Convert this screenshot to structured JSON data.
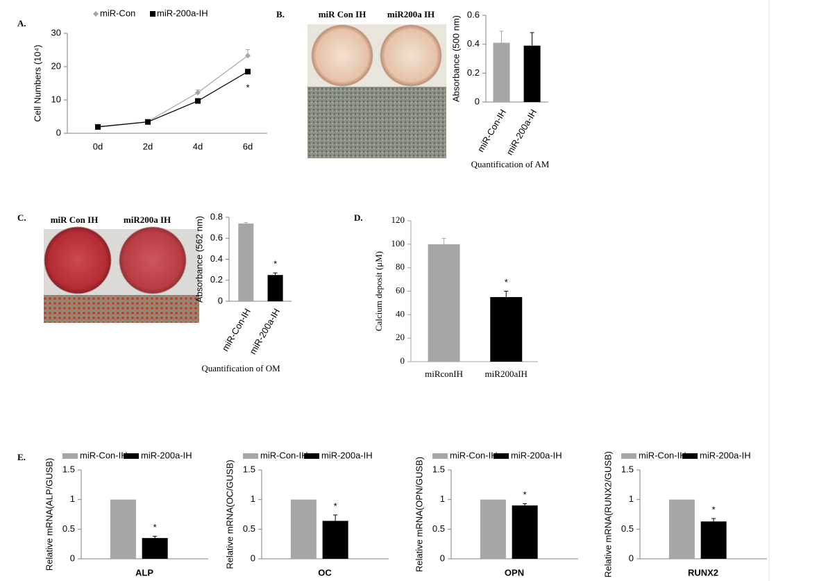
{
  "chart_data": [
    {
      "type": "line",
      "panel": "A.",
      "ylabel": "Cell Numbers (10⁴)",
      "categories": [
        "0d",
        "2d",
        "4d",
        "6d"
      ],
      "ylim": [
        0,
        30
      ],
      "yticks": [
        0,
        10,
        20,
        30
      ],
      "series": [
        {
          "name": "miR-Con",
          "color": "#a6a6a6",
          "marker": "diamond",
          "values": [
            2,
            3.5,
            12.2,
            23.3
          ],
          "errors": [
            0.2,
            0.3,
            0.8,
            1.8
          ]
        },
        {
          "name": "miR-200a-IH",
          "color": "#000000",
          "marker": "square",
          "values": [
            1.9,
            3.4,
            9.7,
            18.5
          ],
          "errors": [
            0.2,
            0.3,
            0.5,
            0.6
          ]
        }
      ],
      "annotation": "*"
    },
    {
      "type": "bar",
      "panel": "B.",
      "photo_labels": [
        "miR Con IH",
        "miR200a IH"
      ],
      "ylabel": "Absorbance (500 nm)",
      "xlabel": "Quantification of AM",
      "categories": [
        "miR-Con-IH",
        "miR-200a-IH"
      ],
      "values": [
        0.41,
        0.39
      ],
      "errors": [
        0.08,
        0.09
      ],
      "colors": [
        "#a6a6a6",
        "#000000"
      ],
      "ylim": [
        0,
        0.6
      ],
      "yticks": [
        0,
        0.2,
        0.4,
        0.6
      ]
    },
    {
      "type": "bar",
      "panel": "C.",
      "photo_labels": [
        "miR Con IH",
        "miR200a IH"
      ],
      "ylabel": "Absorbance (562 nm)",
      "xlabel": "Quantification of OM",
      "categories": [
        "miR-Con-IH",
        "miR-200a-IH"
      ],
      "values": [
        0.74,
        0.25
      ],
      "errors": [
        0.01,
        0.02
      ],
      "colors": [
        "#a6a6a6",
        "#000000"
      ],
      "ylim": [
        0,
        0.8
      ],
      "yticks": [
        0,
        0.2,
        0.4,
        0.6,
        0.8
      ],
      "annotation": "*"
    },
    {
      "type": "bar",
      "panel": "D.",
      "ylabel": "Calcium deposit (μM)",
      "categories": [
        "miRconIH",
        "miR200aIH"
      ],
      "values": [
        100,
        55
      ],
      "errors": [
        5,
        5
      ],
      "colors": [
        "#a6a6a6",
        "#000000"
      ],
      "ylim": [
        0,
        120
      ],
      "yticks": [
        0,
        20,
        40,
        60,
        80,
        100,
        120
      ],
      "annotation": "*"
    },
    {
      "type": "bar",
      "panel": "E.",
      "ylabel": "Relative mRNA(ALP/GUSB)",
      "xlabel": "ALP",
      "ylim": [
        0,
        1.5
      ],
      "yticks": [
        0,
        0.5,
        1,
        1.5
      ],
      "annotation": "*",
      "series": [
        {
          "name": "miR-Con-IH",
          "color": "#a6a6a6",
          "values": [
            1
          ]
        },
        {
          "name": "miR-200a-IH",
          "color": "#000000",
          "values": [
            0.35
          ],
          "errors": [
            0.03
          ]
        }
      ]
    },
    {
      "type": "bar",
      "ylabel": "Relative mRNA(OC/GUSB)",
      "xlabel": "OC",
      "ylim": [
        0,
        1.5
      ],
      "yticks": [
        0,
        0.5,
        1,
        1.5
      ],
      "annotation": "*",
      "series": [
        {
          "name": "miR-Con-IH",
          "color": "#a6a6a6",
          "values": [
            1
          ]
        },
        {
          "name": "miR-200a-IH",
          "color": "#000000",
          "values": [
            0.64
          ],
          "errors": [
            0.1
          ]
        }
      ]
    },
    {
      "type": "bar",
      "ylabel": "Relative mRNA(OPN/GUSB)",
      "xlabel": "OPN",
      "ylim": [
        0,
        1.5
      ],
      "yticks": [
        0,
        0.5,
        1,
        1.5
      ],
      "annotation": "*",
      "series": [
        {
          "name": "miR-Con-IH",
          "color": "#a6a6a6",
          "values": [
            1
          ]
        },
        {
          "name": "miR-200a-IH",
          "color": "#000000",
          "values": [
            0.9
          ],
          "errors": [
            0.03
          ]
        }
      ]
    },
    {
      "type": "bar",
      "ylabel": "Relative mRNA(RUNX2/GUSB)",
      "xlabel": "RUNX2",
      "ylim": [
        0,
        1.5
      ],
      "yticks": [
        0,
        0.5,
        1,
        1.5
      ],
      "annotation": "*",
      "series": [
        {
          "name": "miR-Con-IH",
          "color": "#a6a6a6",
          "values": [
            1
          ]
        },
        {
          "name": "miR-200a-IH",
          "color": "#000000",
          "values": [
            0.63
          ],
          "errors": [
            0.05
          ]
        }
      ]
    }
  ]
}
